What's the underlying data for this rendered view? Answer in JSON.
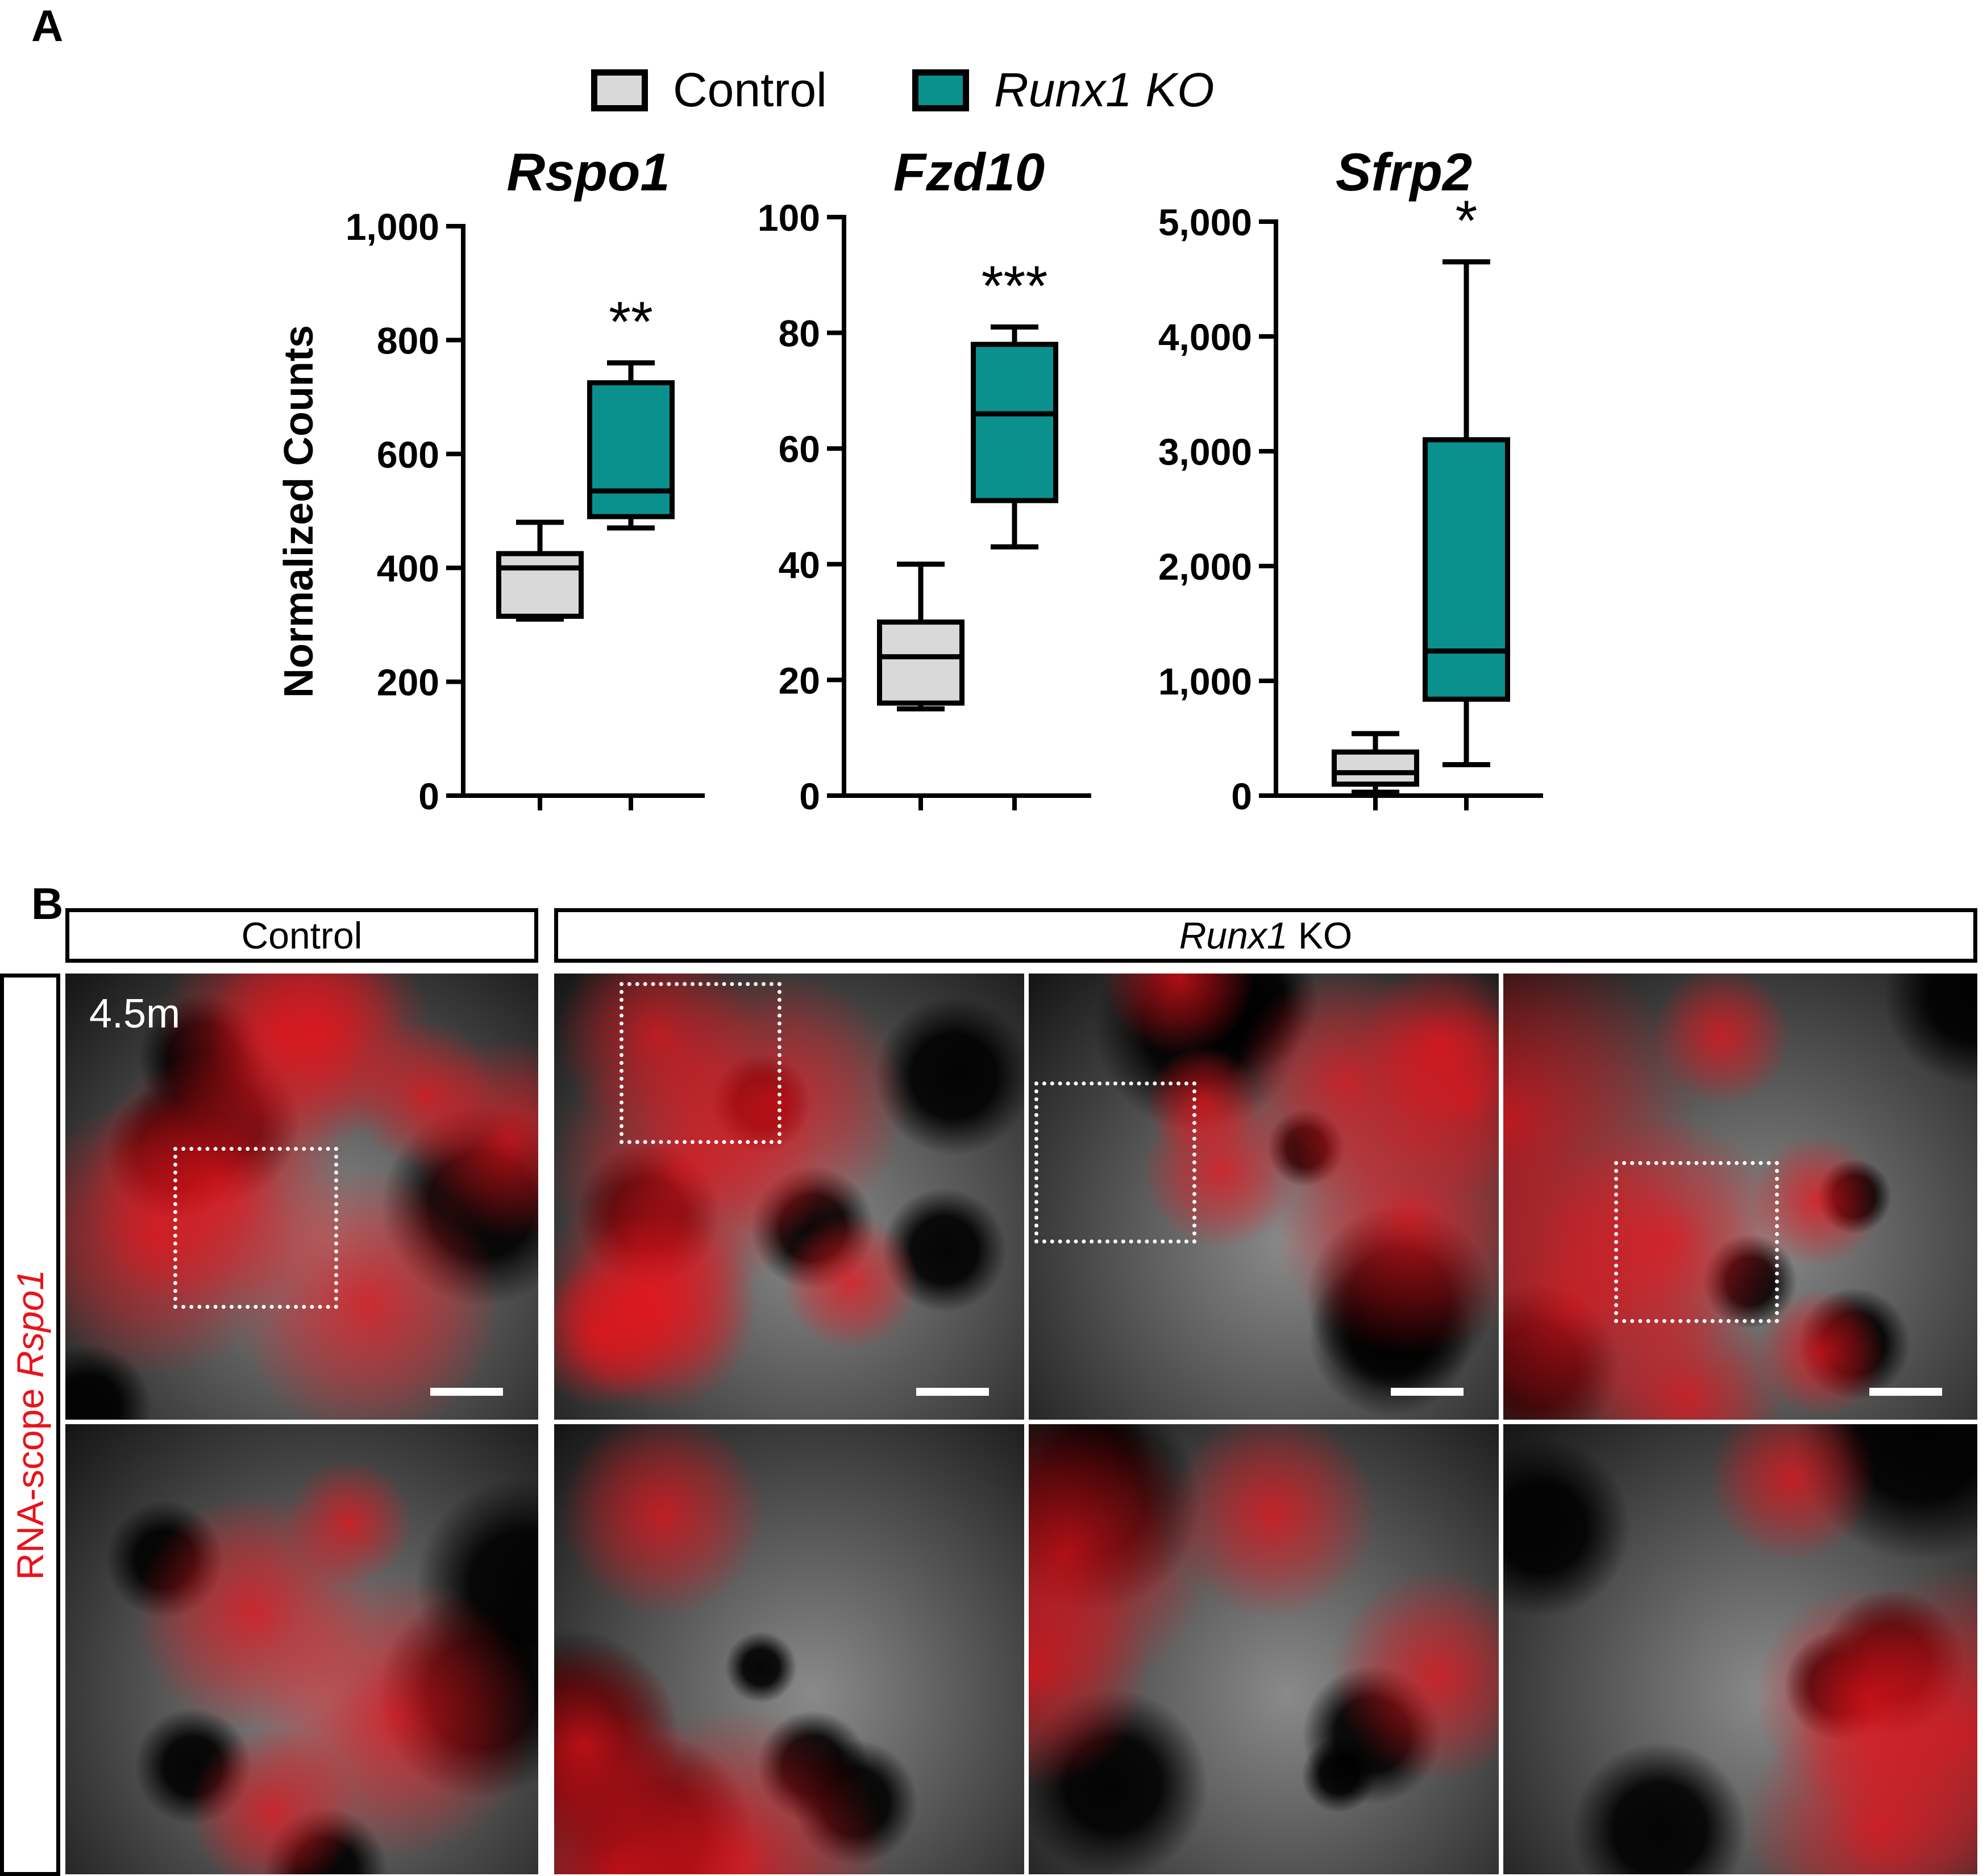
{
  "panel_a": {
    "letter": "A"
  },
  "panel_b": {
    "letter": "B"
  },
  "legend": {
    "items": [
      {
        "label": "Control",
        "color": "#d9d9d9",
        "italic": false
      },
      {
        "label": "Runx1 KO",
        "color": "#0a918e",
        "italic": true
      }
    ]
  },
  "chart_data": [
    {
      "type": "box",
      "title": "Rspo1",
      "ylabel": "Normalized Counts",
      "ylim": [
        0,
        1000
      ],
      "yticks": [
        "0",
        "200",
        "400",
        "600",
        "800",
        "1,000"
      ],
      "yticks_values": [
        0,
        200,
        400,
        600,
        800,
        1000
      ],
      "series": [
        {
          "name": "Control",
          "min": 310,
          "q1": 315,
          "median": 400,
          "q3": 425,
          "max": 480
        },
        {
          "name": "Runx1 KO",
          "min": 470,
          "q1": 490,
          "median": 535,
          "q3": 725,
          "max": 760
        }
      ],
      "annotation": "**"
    },
    {
      "type": "box",
      "title": "Fzd10",
      "ylim": [
        0,
        100
      ],
      "yticks": [
        "0",
        "20",
        "40",
        "60",
        "80",
        "100"
      ],
      "yticks_values": [
        0,
        20,
        40,
        60,
        80,
        100
      ],
      "series": [
        {
          "name": "Control",
          "min": 15,
          "q1": 16,
          "median": 24,
          "q3": 30,
          "max": 40
        },
        {
          "name": "Runx1 KO",
          "min": 43,
          "q1": 51,
          "median": 66,
          "q3": 78,
          "max": 81
        }
      ],
      "annotation": "***"
    },
    {
      "type": "box",
      "title": "Sfrp2",
      "ylim": [
        0,
        5000
      ],
      "yticks": [
        "0",
        "1,000",
        "2,000",
        "3,000",
        "4,000",
        "5,000"
      ],
      "yticks_values": [
        0,
        1000,
        2000,
        3000,
        4000,
        5000
      ],
      "series": [
        {
          "name": "Control",
          "min": 30,
          "q1": 100,
          "median": 200,
          "q3": 380,
          "max": 540
        },
        {
          "name": "Runx1 KO",
          "min": 270,
          "q1": 840,
          "median": 1260,
          "q3": 3100,
          "max": 4650
        }
      ],
      "annotation": "*"
    }
  ],
  "micrographs": {
    "group_control": "Control",
    "group_ko_gene": "Runx1",
    "group_ko_suffix": " KO",
    "side_label_prefix": "RNA-scope ",
    "side_label_gene": "Rspo1",
    "stage_label": "4.5m",
    "colors": {
      "signal": "#e8131b",
      "nuclei": "#8a8a8a",
      "background": "#141414"
    }
  }
}
